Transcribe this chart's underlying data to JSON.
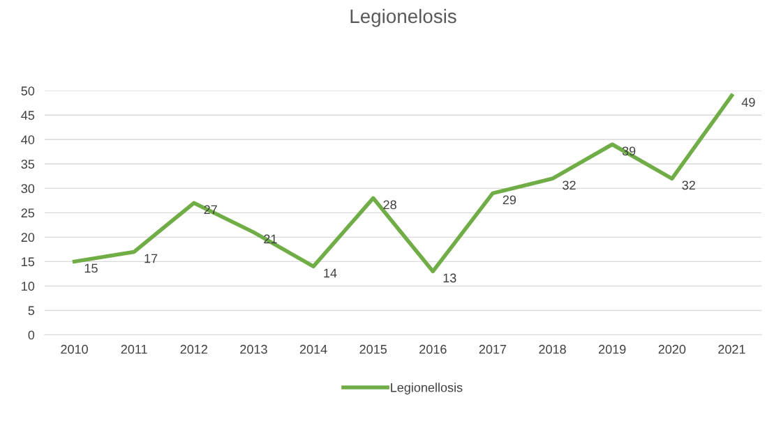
{
  "chart_data": {
    "type": "line",
    "title": "Legionelosis",
    "categories": [
      "2010",
      "2011",
      "2012",
      "2013",
      "2014",
      "2015",
      "2016",
      "2017",
      "2018",
      "2019",
      "2020",
      "2021"
    ],
    "series": [
      {
        "name": "Legionellosis",
        "color": "#70ad47",
        "values": [
          15,
          17,
          27,
          21,
          14,
          28,
          13,
          29,
          32,
          39,
          32,
          49
        ]
      }
    ],
    "ylim": [
      0,
      50
    ],
    "yticks": [
      0,
      5,
      10,
      15,
      20,
      25,
      30,
      35,
      40,
      45,
      50
    ],
    "grid": "y",
    "legend": "bottom",
    "data_labels": true,
    "marker": "none",
    "line_style": "solid"
  }
}
